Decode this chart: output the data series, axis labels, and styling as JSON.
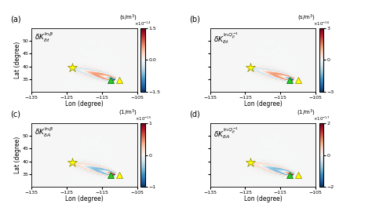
{
  "fig_width": 4.74,
  "fig_height": 2.74,
  "dpi": 100,
  "lon_range": [
    -135,
    -105
  ],
  "lat_range": [
    30,
    55
  ],
  "lon_ticks": [
    -135,
    -125,
    -115,
    -105
  ],
  "lat_ticks": [
    35,
    40,
    45,
    50
  ],
  "xlabel": "Lon (degree)",
  "ylabel": "Lat (degree)",
  "star_lon": -123.5,
  "star_lat": 39.5,
  "tri1_lon": -112.5,
  "tri1_lat": 34.8,
  "tri2_lon": -110.0,
  "tri2_lat": 34.8,
  "panel_labels": [
    "(a)",
    "(b)",
    "(c)",
    "(d)"
  ],
  "kernel_labels": [
    {
      "main": "$\\delta K^{\\ln\\beta}_{\\delta t}$",
      "units": "(s/m$^3$)",
      "exp": "$\\times10^{-14}$",
      "vmax": 1.5,
      "vmin": -1.5,
      "cticks": [
        1.5,
        0,
        -1.5
      ]
    },
    {
      "main": "$\\delta K^{\\ln Q_{\\beta}^{-1}}_{\\delta t}$",
      "units": "(s/m$^3$)",
      "exp": "$\\times10^{-16}$",
      "vmax": 3.0,
      "vmin": -3.0,
      "cticks": [
        3,
        0,
        -3
      ]
    },
    {
      "main": "$\\delta K^{\\ln\\beta}_{\\delta A}$",
      "units": "(1/m$^3$)",
      "exp": "$\\times10^{-15}$",
      "vmax": 1.0,
      "vmin": -1.0,
      "cticks": [
        1,
        0,
        -1
      ]
    },
    {
      "main": "$\\delta K^{\\ln Q_{\\beta}^{-1}}_{\\delta A}$",
      "units": "(1/m$^3$)",
      "exp": "$\\times10^{-17}$",
      "vmax": 2.0,
      "vmin": -2.0,
      "cticks": [
        2,
        0,
        -2
      ]
    }
  ],
  "background_color": "#ffffff",
  "panel_bg": "#f0f0f0"
}
